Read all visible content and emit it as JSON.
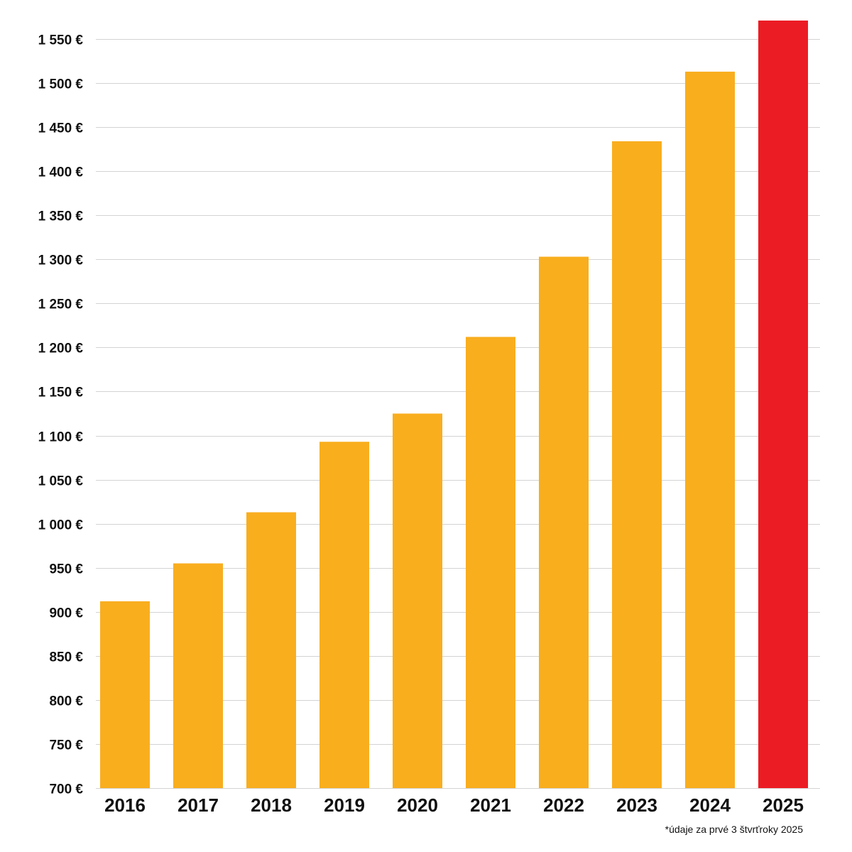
{
  "chart_data": {
    "type": "bar",
    "title": "",
    "xlabel": "",
    "ylabel": "",
    "categories": [
      "2016",
      "2017",
      "2018",
      "2019",
      "2020",
      "2021",
      "2022",
      "2023",
      "2024",
      "2025"
    ],
    "values": [
      912,
      955,
      1013,
      1093,
      1125,
      1212,
      1303,
      1434,
      1513,
      1571
    ],
    "ylim": [
      700,
      1570
    ],
    "yticks": [
      700,
      750,
      800,
      850,
      900,
      950,
      1000,
      1050,
      1100,
      1150,
      1200,
      1250,
      1300,
      1350,
      1400,
      1450,
      1500,
      1550
    ],
    "ytick_labels": [
      "700 €",
      "750 €",
      "800 €",
      "850 €",
      "900 €",
      "950 €",
      "1 000 €",
      "1 050 €",
      "1 100 €",
      "1 150 €",
      "1 200 €",
      "1 250 €",
      "1 300 €",
      "1 350 €",
      "1 400 €",
      "1 450 €",
      "1 500 €",
      "1 550 €"
    ],
    "grid": true,
    "legend": "none",
    "colors": {
      "default": "#F9AE1E",
      "highlight": "#EC1C24",
      "grid": "#D3D3D3"
    },
    "highlight_category": "2025",
    "footnote": "*údaje za prvé 3 štvrťroky 2025"
  }
}
